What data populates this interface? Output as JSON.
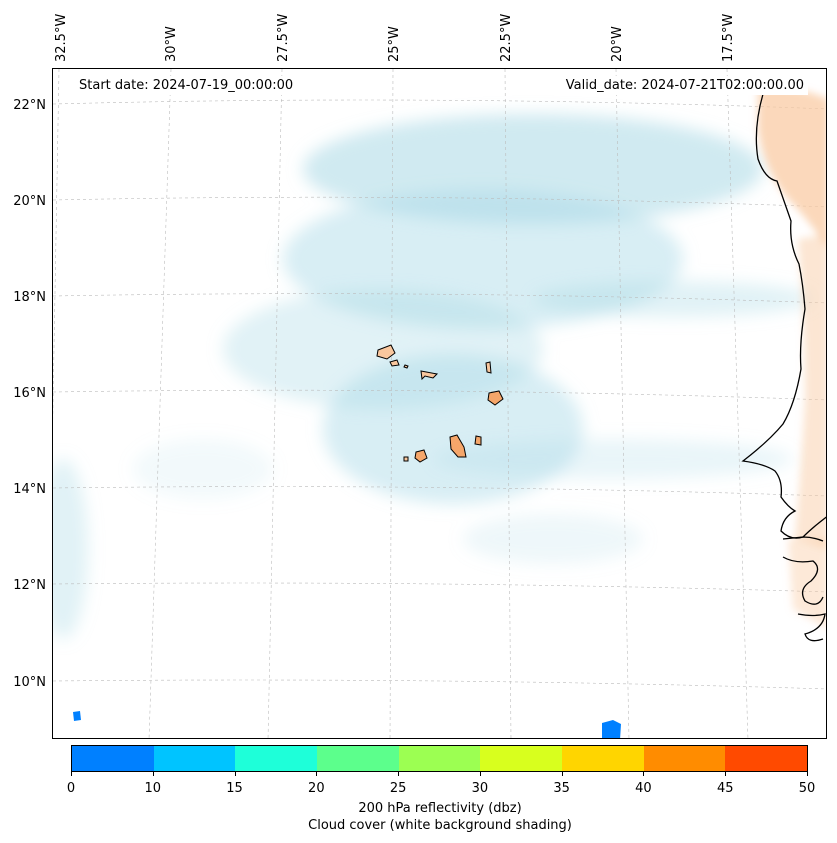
{
  "map": {
    "start_date": "Start date: 2024-07-19_00:00:00",
    "valid_date": "Valid_date: 2024-07-21T02:00:00.00",
    "lon_labels": [
      "32.5°W",
      "30°W",
      "27.5°W",
      "25°W",
      "22.5°W",
      "20°W",
      "17.5°W"
    ],
    "lat_labels": [
      "22°N",
      "20°N",
      "18°N",
      "16°N",
      "14°N",
      "12°N",
      "10°N"
    ],
    "colors": {
      "cloud": "#a9d9e6",
      "coast": "#000000",
      "land_warm": "#f5a66a",
      "land_pale": "#f9c79e",
      "grid": "#bbbbbb"
    }
  },
  "colorbar": {
    "ticks": [
      "0",
      "10",
      "15",
      "20",
      "25",
      "30",
      "35",
      "40",
      "45",
      "50"
    ],
    "colors": [
      "#0080ff",
      "#00c4ff",
      "#1effd9",
      "#5cff8c",
      "#9cff52",
      "#d8ff1e",
      "#ffd500",
      "#ff8c00",
      "#ff4a00"
    ],
    "label_line1": "200 hPa reflectivity (dbz)",
    "label_line2": "Cloud cover (white background shading)"
  }
}
